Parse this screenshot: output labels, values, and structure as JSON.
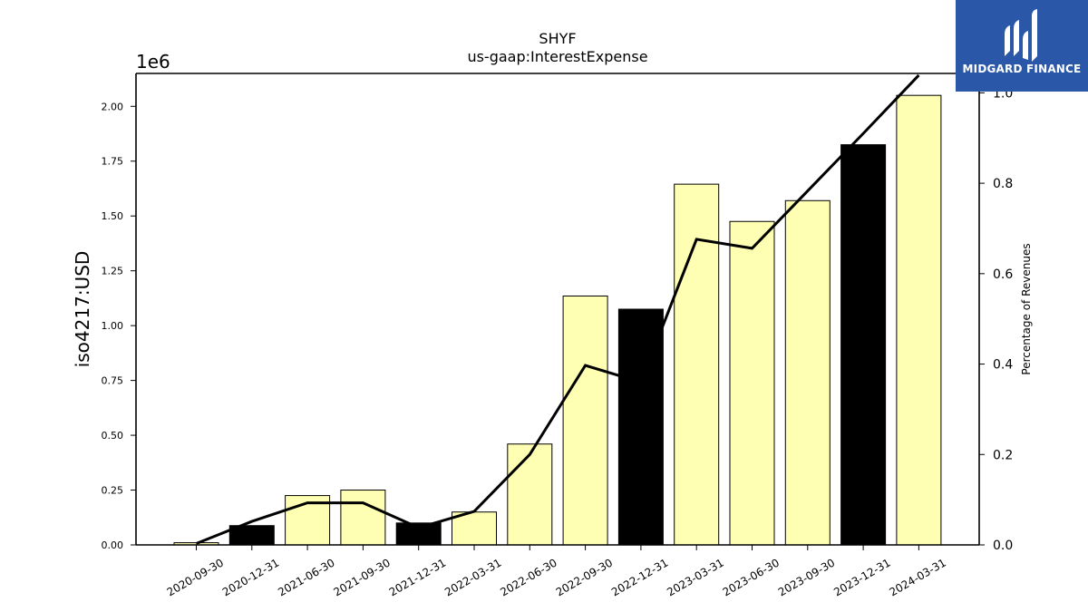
{
  "chart_data": {
    "type": "bar",
    "title": "SHYF",
    "subtitle": "us-gaap:InterestExpense",
    "ylabel": "iso4217:USD",
    "y_offset_label": "1e6",
    "y2label": "Percentage of Revenues",
    "ylim": [
      0,
      2150000
    ],
    "y2lim": [
      0,
      1.0429
    ],
    "yticks": [
      "0.00",
      "0.25",
      "0.50",
      "0.75",
      "1.00",
      "1.25",
      "1.50",
      "1.75",
      "2.00"
    ],
    "y2ticks": [
      "0.0",
      "0.2",
      "0.4",
      "0.6",
      "0.8",
      "1.0"
    ],
    "categories": [
      "2020-09-30",
      "2020-12-31",
      "2021-06-30",
      "2021-09-30",
      "2021-12-31",
      "2022-03-31",
      "2022-06-30",
      "2022-09-30",
      "2022-12-31",
      "2023-03-31",
      "2023-06-30",
      "2023-09-30",
      "2023-12-31",
      "2024-03-31"
    ],
    "series": [
      {
        "kind": "bar",
        "values": [
          10000,
          88000,
          225000,
          250000,
          100000,
          150000,
          460000,
          1135000,
          1075000,
          1645000,
          1475000,
          1570000,
          1825000,
          2050000
        ],
        "highlight": [
          false,
          true,
          false,
          false,
          true,
          false,
          false,
          false,
          true,
          false,
          false,
          false,
          true,
          false
        ]
      },
      {
        "kind": "line",
        "axis": "right",
        "values": [
          0.003,
          0.052,
          0.093,
          0.093,
          0.038,
          0.074,
          0.2,
          0.397,
          0.36,
          0.676,
          0.656,
          0.783,
          0.91,
          1.039
        ]
      }
    ],
    "colors": {
      "bar": "#ffffb3",
      "highlight": "#000000",
      "line": "#000000"
    },
    "grid": false
  },
  "logo": {
    "text": "MIDGARD FINANCE",
    "color": "#2b57a8"
  }
}
